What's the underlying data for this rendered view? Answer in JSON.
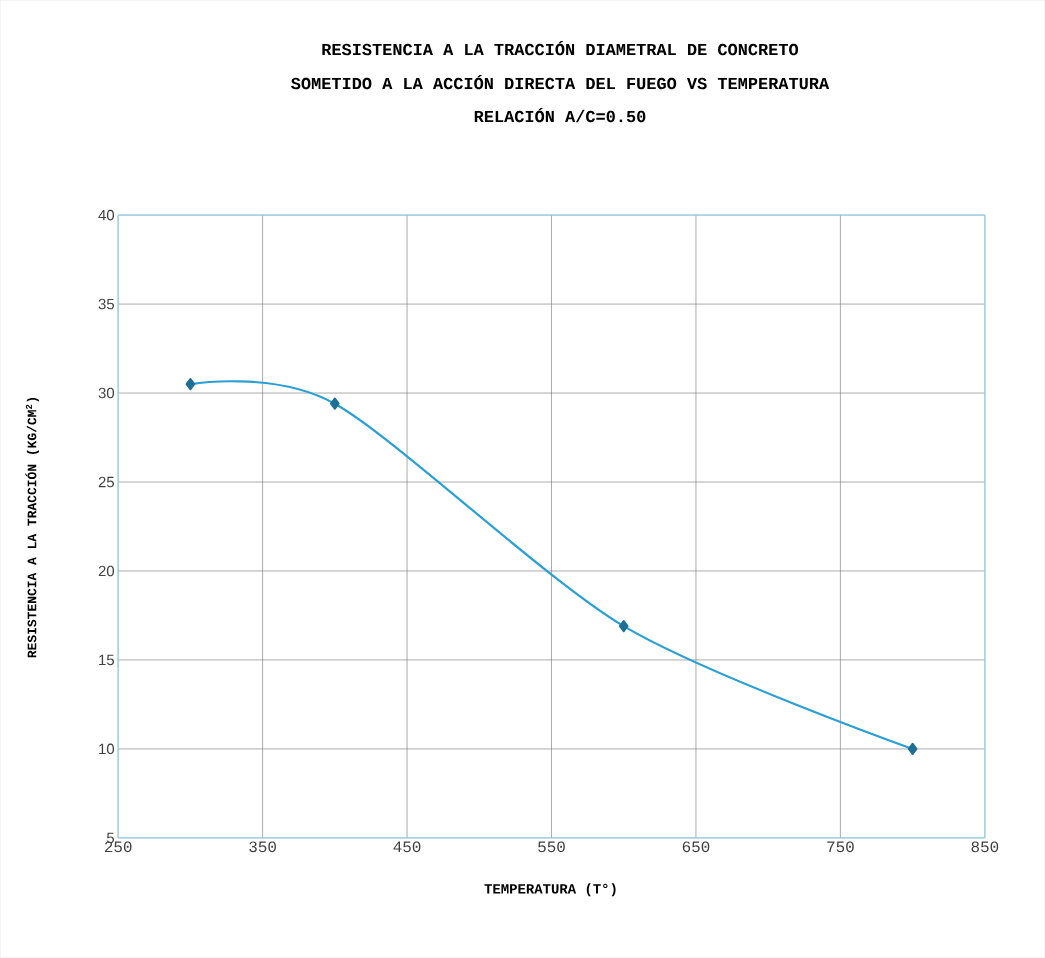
{
  "chart_data": {
    "type": "line",
    "title": "RESISTENCIA A LA TRACCIÓN DIAMETRAL DE CONCRETO",
    "subtitle": [
      "SOMETIDO A LA ACCIÓN DIRECTA DEL FUEGO VS TEMPERATURA",
      "RELACIÓN A/C=0.50"
    ],
    "xlabel": "TEMPERATURA (T°)",
    "ylabel": "RESISTENCIA A LA TRACCIÓN (KG/CM$^{2}$)",
    "x": [
      300,
      400,
      600,
      800
    ],
    "series": [
      {
        "color": "#2a9fd6",
        "values": [
          30.5,
          29.4,
          16.9,
          10.0
        ]
      }
    ],
    "xlim": [
      250,
      850
    ],
    "xticks": [
      250,
      350,
      450,
      550,
      650,
      750,
      850
    ],
    "ylim": [
      5,
      40
    ],
    "yticks": [
      5,
      10,
      15,
      20,
      25,
      30,
      35,
      40
    ],
    "grid": true,
    "marker": "diamond",
    "line_style": "solid"
  }
}
